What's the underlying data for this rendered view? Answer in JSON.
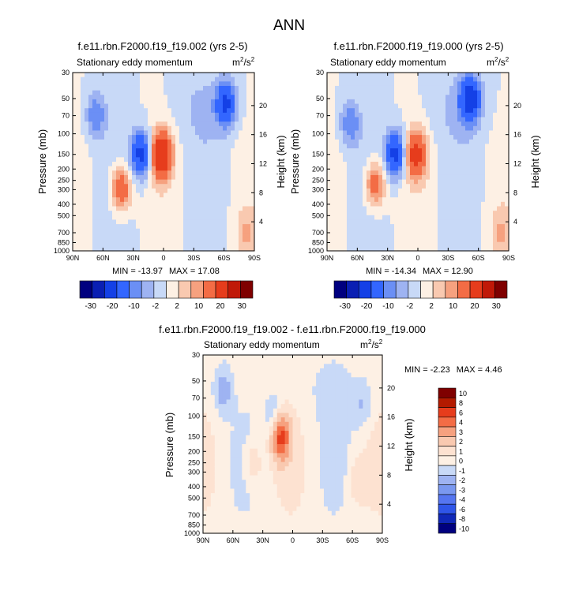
{
  "figure": {
    "title": "ANN"
  },
  "pressure_ticks": [
    30,
    50,
    70,
    100,
    150,
    200,
    250,
    300,
    400,
    500,
    700,
    850,
    1000
  ],
  "height_ticks": [
    20,
    16,
    12,
    8,
    4
  ],
  "lat_ticks": [
    "90N",
    "60N",
    "30N",
    "0",
    "30S",
    "60S",
    "90S"
  ],
  "chart_data": [
    {
      "type": "heatmap",
      "id": "p1",
      "title": "f.e11.rbn.F2000.f19_f19.002 (yrs 2-5)",
      "left_label": "Stationary eddy momentum",
      "units_base": "m",
      "units_exp1": "2",
      "units_mid": "/s",
      "units_exp2": "2",
      "xlabel": "",
      "ylabel": "Pressure (mb)",
      "y2label": "Height (km)",
      "xlim": [
        90,
        -90
      ],
      "ylim": [
        1000,
        30
      ],
      "min_label": "MIN = -13.97",
      "max_label": "MAX = 17.08",
      "min": -13.97,
      "max": 17.08,
      "colorbar_levels": [
        -30,
        -20,
        -10,
        -2,
        2,
        10,
        20,
        30
      ],
      "features": [
        {
          "lat": 42,
          "p": 290,
          "value": 10
        },
        {
          "lat": 22,
          "p": 150,
          "value": -12
        },
        {
          "lat": 2,
          "p": 150,
          "value": 16
        },
        {
          "lat": -62,
          "p": 55,
          "value": -10
        },
        {
          "lat": 67,
          "p": 70,
          "value": -6
        },
        {
          "lat": -82,
          "p": 720,
          "value": 4
        }
      ]
    },
    {
      "type": "heatmap",
      "id": "p2",
      "title": "f.e11.rbn.F2000.f19_f19.000 (yrs 2-5)",
      "left_label": "Stationary eddy momentum",
      "units_base": "m",
      "units_exp1": "2",
      "units_mid": "/s",
      "units_exp2": "2",
      "xlabel": "",
      "ylabel": "Pressure (mb)",
      "y2label": "Height (km)",
      "xlim": [
        90,
        -90
      ],
      "ylim": [
        1000,
        30
      ],
      "min_label": "MIN = -14.34",
      "max_label": "MAX = 12.90",
      "min": -14.34,
      "max": 12.9,
      "colorbar_levels": [
        -30,
        -20,
        -10,
        -2,
        2,
        10,
        20,
        30
      ],
      "features": [
        {
          "lat": 42,
          "p": 270,
          "value": 9
        },
        {
          "lat": 22,
          "p": 150,
          "value": -12
        },
        {
          "lat": 2,
          "p": 150,
          "value": 12
        },
        {
          "lat": -52,
          "p": 50,
          "value": -12
        },
        {
          "lat": 67,
          "p": 80,
          "value": -6
        },
        {
          "lat": -82,
          "p": 700,
          "value": 4
        }
      ]
    },
    {
      "type": "heatmap",
      "id": "p3",
      "title": "f.e11.rbn.F2000.f19_f19.002 - f.e11.rbn.F2000.f19_f19.000",
      "left_label": "Stationary eddy momentum",
      "units_base": "m",
      "units_exp1": "2",
      "units_mid": "/s",
      "units_exp2": "2",
      "xlabel": "",
      "ylabel": "Pressure (mb)",
      "y2label": "Height (km)",
      "xlim": [
        90,
        -90
      ],
      "ylim": [
        1000,
        30
      ],
      "min_label": "MIN =  -2.23",
      "max_label": "MAX =  4.46",
      "min": -2.23,
      "max": 4.46,
      "colorbar_levels": [
        10,
        8,
        6,
        4,
        3,
        2,
        1,
        0,
        -1,
        -2,
        -3,
        -4,
        -6,
        -8,
        -10
      ],
      "features": [
        {
          "lat": 12,
          "p": 150,
          "value": 4.4
        },
        {
          "lat": 40,
          "p": 250,
          "value": 1.2
        },
        {
          "lat": 70,
          "p": 60,
          "value": -1.5
        },
        {
          "lat": 18,
          "p": 100,
          "value": -1.2
        },
        {
          "lat": -65,
          "p": 350,
          "value": 0.9
        },
        {
          "lat": -70,
          "p": 80,
          "value": -1.0
        }
      ]
    }
  ],
  "colors": {
    "diverging": [
      "#00007f",
      "#0a1fb3",
      "#1440e6",
      "#3366ff",
      "#6b8ff5",
      "#9eb3f2",
      "#c8d9f7",
      "#fdf0e4",
      "#f9c9b0",
      "#f6a17f",
      "#f36c45",
      "#e63c1c",
      "#c01908",
      "#7f0000"
    ],
    "diff_scale": [
      "#7f0000",
      "#b31a00",
      "#e63c1c",
      "#f36c45",
      "#f6a17f",
      "#f9c9b0",
      "#fde2d1",
      "#fdf0e4",
      "#c8d9f7",
      "#9eb3f2",
      "#7a98f0",
      "#5575f0",
      "#2f55e8",
      "#1028b8",
      "#00007f"
    ]
  }
}
